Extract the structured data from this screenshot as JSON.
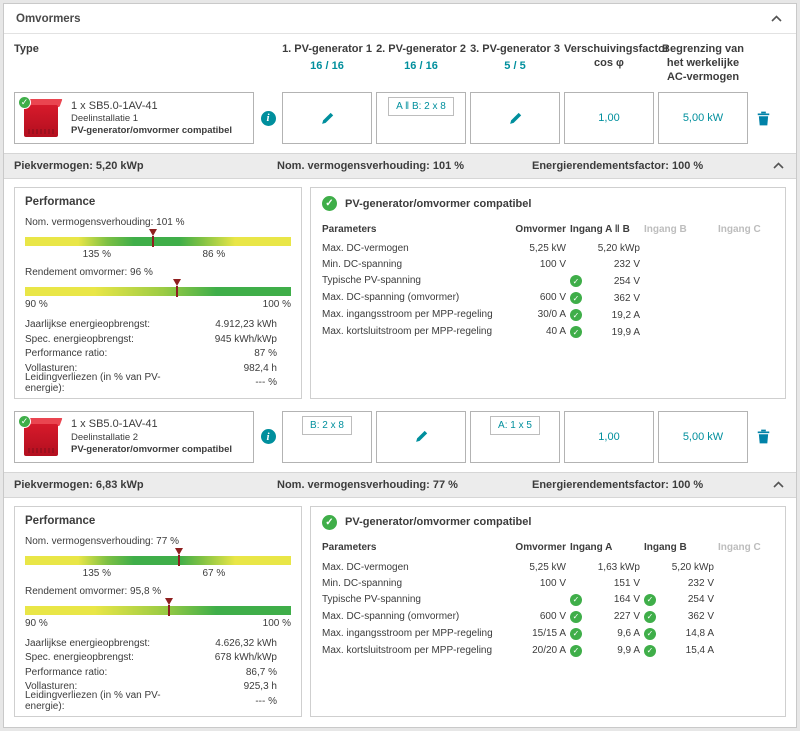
{
  "colors": {
    "accent": "#008f9d",
    "ok_green": "#3fae49",
    "device_red": "#d61a2b",
    "marker_red": "#8e1f1f"
  },
  "panel": {
    "title": "Omvormers"
  },
  "table_header": {
    "type": "Type",
    "col1_title": "1. PV-generator 1",
    "col1_count": "16 / 16",
    "col2_title": "2. PV-generator 2",
    "col2_count": "16 / 16",
    "col3_title": "3. PV-generator 3",
    "col3_count": "5 / 5",
    "col4_title": "Verschuivingsfactor cos φ",
    "col5_title": "Begrenzing van het werkelijke AC-vermogen"
  },
  "inverters": [
    {
      "name": "1 x SB5.0-1AV-41",
      "subinstallation": "Deelinstallatie 1",
      "compatibility": "PV-generator/omvormer compatibel",
      "pv2_chip": "A ‖ B: 2 x 8",
      "cos_phi": "1,00",
      "ac_limit": "5,00 kW",
      "summary": {
        "peak": "Piekvermogen: 5,20 kWp",
        "ratio": "Nom. vermogensverhouding: 101 %",
        "energy_factor": "Energierendementsfactor: 100 %"
      },
      "performance": {
        "title": "Performance",
        "ratio_label": "Nom. vermogensverhouding: 101 %",
        "ratio_marker_pct": 48,
        "ratio_tick_left": "135 %",
        "ratio_tick_right": "86 %",
        "efficiency_label": "Rendement omvormer: 96 %",
        "eff_marker_pct": 57,
        "eff_tick_left": "90 %",
        "eff_tick_right": "100 %",
        "stats": [
          {
            "label": "Jaarlijkse energieopbrengst:",
            "value": "4.912,23 kWh"
          },
          {
            "label": "Spec. energieopbrengst:",
            "value": "945 kWh/kWp"
          },
          {
            "label": "Performance ratio:",
            "value": "87 %"
          },
          {
            "label": "Vollasturen:",
            "value": "982,4 h"
          },
          {
            "label": "Leidingverliezen (in % van PV-energie):",
            "value": "--- %"
          }
        ]
      },
      "params": {
        "status": "PV-generator/omvormer compatibel",
        "col_parameters": "Parameters",
        "col_omvormer": "Omvormer",
        "col_in1": "Ingang A ‖ B",
        "col_in2": "Ingang B",
        "col_in3": "Ingang C",
        "rows": [
          {
            "label": "Max. DC-vermogen",
            "omvormer": "5,25 kW",
            "in1": "5,20 kWp"
          },
          {
            "label": "Min. DC-spanning",
            "omvormer": "100 V",
            "in1": "232 V"
          },
          {
            "label": "Typische PV-spanning",
            "omvormer": "",
            "in1": "254 V"
          },
          {
            "label": "Max. DC-spanning (omvormer)",
            "omvormer": "600 V",
            "in1": "362 V"
          },
          {
            "label": "Max. ingangsstroom per MPP-regeling",
            "omvormer": "30/0 A",
            "in1": "19,2 A"
          },
          {
            "label": "Max. kortsluitstroom per MPP-regeling",
            "omvormer": "40 A",
            "in1": "19,9 A"
          }
        ]
      }
    },
    {
      "name": "1 x SB5.0-1AV-41",
      "subinstallation": "Deelinstallatie 2",
      "compatibility": "PV-generator/omvormer compatibel",
      "pv1_chip": "B: 2 x 8",
      "pv3_chip": "A: 1 x 5",
      "cos_phi": "1,00",
      "ac_limit": "5,00 kW",
      "summary": {
        "peak": "Piekvermogen: 6,83 kWp",
        "ratio": "Nom. vermogensverhouding: 77 %",
        "energy_factor": "Energierendementsfactor: 100 %"
      },
      "performance": {
        "title": "Performance",
        "ratio_label": "Nom. vermogensverhouding: 77 %",
        "ratio_marker_pct": 58,
        "ratio_tick_left": "135 %",
        "ratio_tick_right": "67 %",
        "efficiency_label": "Rendement omvormer: 95,8 %",
        "eff_marker_pct": 54,
        "eff_tick_left": "90 %",
        "eff_tick_right": "100 %",
        "stats": [
          {
            "label": "Jaarlijkse energieopbrengst:",
            "value": "4.626,32 kWh"
          },
          {
            "label": "Spec. energieopbrengst:",
            "value": "678 kWh/kWp"
          },
          {
            "label": "Performance ratio:",
            "value": "86,7 %"
          },
          {
            "label": "Vollasturen:",
            "value": "925,3 h"
          },
          {
            "label": "Leidingverliezen (in % van PV-energie):",
            "value": "--- %"
          }
        ]
      },
      "params": {
        "status": "PV-generator/omvormer compatibel",
        "col_parameters": "Parameters",
        "col_omvormer": "Omvormer",
        "col_in1": "Ingang A",
        "col_in2": "Ingang B",
        "col_in3": "Ingang C",
        "rows": [
          {
            "label": "Max. DC-vermogen",
            "omvormer": "5,25 kW",
            "in1": "1,63 kWp",
            "in2": "5,20 kWp"
          },
          {
            "label": "Min. DC-spanning",
            "omvormer": "100 V",
            "in1": "151 V",
            "in2": "232 V"
          },
          {
            "label": "Typische PV-spanning",
            "omvormer": "",
            "in1": "164 V",
            "in2": "254 V"
          },
          {
            "label": "Max. DC-spanning (omvormer)",
            "omvormer": "600 V",
            "in1": "227 V",
            "in2": "362 V"
          },
          {
            "label": "Max. ingangsstroom per MPP-regeling",
            "omvormer": "15/15 A",
            "in1": "9,6 A",
            "in2": "14,8 A"
          },
          {
            "label": "Max. kortsluitstroom per MPP-regeling",
            "omvormer": "20/20 A",
            "in1": "9,9 A",
            "in2": "15,4 A"
          }
        ]
      }
    }
  ]
}
